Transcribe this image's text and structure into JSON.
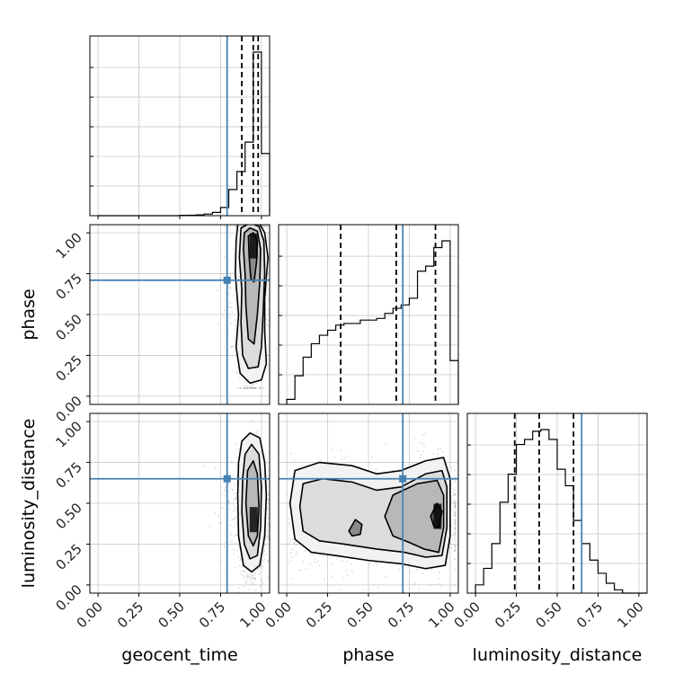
{
  "colors": {
    "truth": "#4682b4",
    "quantile": "#000000",
    "hist": "#000000",
    "grid": "#c8c8c8",
    "density_dark": "#000000"
  },
  "chart_data": {
    "type": "corner",
    "parameters": [
      "geocent_time",
      "phase",
      "luminosity_distance"
    ],
    "axis_range": [
      -0.05,
      1.05
    ],
    "tick_labels": [
      "0.00",
      "0.25",
      "0.50",
      "0.75",
      "1.00"
    ],
    "ticks": [
      0,
      0.25,
      0.5,
      0.75,
      1.0
    ],
    "grid": true,
    "truths": {
      "geocent_time": 0.79,
      "phase": 0.71,
      "luminosity_distance": 0.65
    },
    "quantiles": {
      "geocent_time": [
        0.88,
        0.95,
        0.98
      ],
      "phase": [
        0.33,
        0.67,
        0.91
      ],
      "luminosity_distance": [
        0.24,
        0.39,
        0.6
      ]
    },
    "histograms": {
      "geocent_time": {
        "bin_edges": [
          0.0,
          0.05,
          0.1,
          0.15,
          0.2,
          0.25,
          0.3,
          0.35,
          0.4,
          0.45,
          0.5,
          0.55,
          0.6,
          0.65,
          0.7,
          0.75,
          0.8,
          0.85,
          0.9,
          0.95,
          1.0,
          1.05
        ],
        "counts": [
          0,
          0,
          0,
          0,
          0,
          0,
          0,
          0,
          0,
          0,
          0.2,
          0.3,
          0.5,
          1,
          2,
          5,
          16,
          27,
          45,
          100,
          38
        ]
      },
      "phase": {
        "bin_edges": [
          0.0,
          0.05,
          0.1,
          0.15,
          0.2,
          0.25,
          0.3,
          0.35,
          0.4,
          0.45,
          0.5,
          0.55,
          0.6,
          0.65,
          0.7,
          0.75,
          0.8,
          0.85,
          0.9,
          0.95,
          1.0,
          1.05
        ],
        "counts": [
          3,
          17,
          28,
          36,
          41,
          44,
          47,
          48,
          48,
          50,
          50,
          51,
          54,
          57,
          59,
          63,
          79,
          82,
          93,
          97,
          26
        ]
      },
      "luminosity_distance": {
        "bin_edges": [
          0.0,
          0.05,
          0.1,
          0.15,
          0.2,
          0.25,
          0.3,
          0.35,
          0.4,
          0.45,
          0.5,
          0.55,
          0.6,
          0.65,
          0.7,
          0.75,
          0.8,
          0.85,
          0.9,
          0.95,
          1.0,
          1.05
        ],
        "counts": [
          5,
          15,
          30,
          55,
          72,
          90,
          93,
          98,
          99,
          93,
          75,
          65,
          44,
          30,
          20,
          12,
          6,
          2,
          0,
          0,
          0
        ]
      }
    },
    "density_2d": [
      {
        "x": "geocent_time",
        "y": "phase",
        "contours": [
          [
            [
              0.855,
              1.05
            ],
            [
              0.9,
              1.08
            ],
            [
              0.98,
              1.07
            ],
            [
              1.02,
              1.0
            ],
            [
              1.04,
              0.85
            ],
            [
              1.02,
              0.6
            ],
            [
              1.02,
              0.4
            ],
            [
              1.03,
              0.2
            ],
            [
              1.0,
              0.1
            ],
            [
              0.93,
              0.08
            ],
            [
              0.87,
              0.14
            ],
            [
              0.845,
              0.3
            ],
            [
              0.86,
              0.5
            ],
            [
              0.84,
              0.75
            ],
            [
              0.845,
              0.95
            ]
          ],
          [
            [
              0.875,
              1.03
            ],
            [
              0.93,
              1.06
            ],
            [
              0.985,
              1.04
            ],
            [
              1.015,
              0.95
            ],
            [
              1.02,
              0.75
            ],
            [
              1.01,
              0.5
            ],
            [
              1.0,
              0.3
            ],
            [
              0.98,
              0.18
            ],
            [
              0.92,
              0.17
            ],
            [
              0.885,
              0.25
            ],
            [
              0.875,
              0.45
            ],
            [
              0.88,
              0.65
            ],
            [
              0.865,
              0.85
            ]
          ],
          [
            [
              0.895,
              1.0
            ],
            [
              0.93,
              1.03
            ],
            [
              0.975,
              1.01
            ],
            [
              0.995,
              0.9
            ],
            [
              0.99,
              0.7
            ],
            [
              0.975,
              0.5
            ],
            [
              0.955,
              0.32
            ],
            [
              0.92,
              0.35
            ],
            [
              0.905,
              0.55
            ],
            [
              0.9,
              0.75
            ],
            [
              0.89,
              0.9
            ]
          ],
          [
            [
              0.92,
              0.98
            ],
            [
              0.95,
              1.0
            ],
            [
              0.975,
              0.95
            ],
            [
              0.97,
              0.82
            ],
            [
              0.955,
              0.7
            ],
            [
              0.935,
              0.72
            ],
            [
              0.925,
              0.85
            ]
          ]
        ]
      },
      {
        "x": "geocent_time",
        "y": "luminosity_distance",
        "contours": [
          [
            [
              0.88,
              0.88
            ],
            [
              0.93,
              0.93
            ],
            [
              0.99,
              0.9
            ],
            [
              1.02,
              0.75
            ],
            [
              1.03,
              0.55
            ],
            [
              1.02,
              0.3
            ],
            [
              0.99,
              0.12
            ],
            [
              0.94,
              0.08
            ],
            [
              0.89,
              0.12
            ],
            [
              0.86,
              0.3
            ],
            [
              0.855,
              0.55
            ],
            [
              0.86,
              0.75
            ]
          ],
          [
            [
              0.9,
              0.8
            ],
            [
              0.94,
              0.86
            ],
            [
              0.985,
              0.8
            ],
            [
              1.0,
              0.6
            ],
            [
              0.995,
              0.35
            ],
            [
              0.975,
              0.18
            ],
            [
              0.93,
              0.16
            ],
            [
              0.895,
              0.25
            ],
            [
              0.88,
              0.45
            ],
            [
              0.885,
              0.65
            ]
          ],
          [
            [
              0.915,
              0.7
            ],
            [
              0.95,
              0.76
            ],
            [
              0.975,
              0.68
            ],
            [
              0.985,
              0.48
            ],
            [
              0.975,
              0.3
            ],
            [
              0.95,
              0.24
            ],
            [
              0.92,
              0.3
            ],
            [
              0.905,
              0.5
            ]
          ]
        ]
      },
      {
        "x": "phase",
        "y": "luminosity_distance",
        "contours": [
          [
            [
              0.02,
              0.5
            ],
            [
              0.05,
              0.7
            ],
            [
              0.2,
              0.75
            ],
            [
              0.4,
              0.73
            ],
            [
              0.55,
              0.68
            ],
            [
              0.7,
              0.7
            ],
            [
              0.85,
              0.76
            ],
            [
              0.96,
              0.78
            ],
            [
              1.0,
              0.65
            ],
            [
              1.0,
              0.3
            ],
            [
              0.97,
              0.12
            ],
            [
              0.85,
              0.1
            ],
            [
              0.7,
              0.13
            ],
            [
              0.5,
              0.15
            ],
            [
              0.3,
              0.18
            ],
            [
              0.15,
              0.2
            ],
            [
              0.05,
              0.28
            ]
          ],
          [
            [
              0.08,
              0.48
            ],
            [
              0.1,
              0.62
            ],
            [
              0.22,
              0.65
            ],
            [
              0.4,
              0.63
            ],
            [
              0.55,
              0.58
            ],
            [
              0.7,
              0.6
            ],
            [
              0.85,
              0.68
            ],
            [
              0.95,
              0.7
            ],
            [
              0.98,
              0.6
            ],
            [
              0.98,
              0.35
            ],
            [
              0.95,
              0.18
            ],
            [
              0.85,
              0.17
            ],
            [
              0.72,
              0.2
            ],
            [
              0.55,
              0.22
            ],
            [
              0.35,
              0.25
            ],
            [
              0.2,
              0.27
            ],
            [
              0.1,
              0.33
            ]
          ],
          [
            [
              0.6,
              0.42
            ],
            [
              0.65,
              0.55
            ],
            [
              0.8,
              0.62
            ],
            [
              0.92,
              0.64
            ],
            [
              0.96,
              0.55
            ],
            [
              0.96,
              0.35
            ],
            [
              0.93,
              0.2
            ],
            [
              0.84,
              0.22
            ],
            [
              0.75,
              0.26
            ],
            [
              0.65,
              0.3
            ]
          ],
          [
            [
              0.38,
              0.33
            ],
            [
              0.42,
              0.4
            ],
            [
              0.46,
              0.37
            ],
            [
              0.45,
              0.31
            ],
            [
              0.4,
              0.3
            ]
          ],
          [
            [
              0.88,
              0.42
            ],
            [
              0.92,
              0.5
            ],
            [
              0.95,
              0.45
            ],
            [
              0.93,
              0.35
            ],
            [
              0.9,
              0.36
            ]
          ]
        ]
      }
    ],
    "axis_labels": {
      "x": [
        "geocent_time",
        "phase",
        "luminosity_distance"
      ],
      "y": [
        "phase",
        "luminosity_distance"
      ]
    }
  }
}
